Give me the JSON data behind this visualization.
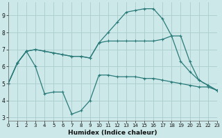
{
  "xlabel": "Humidex (Indice chaleur)",
  "bg_color": "#cce8e8",
  "grid_color": "#aacccc",
  "line_color": "#2a7a7a",
  "series": [
    {
      "x": [
        0,
        1,
        2,
        3,
        4,
        5,
        6,
        7,
        8,
        9,
        10,
        11,
        12,
        13,
        14,
        15,
        16,
        17,
        18,
        19,
        20,
        21,
        22,
        23
      ],
      "y": [
        5.0,
        6.2,
        6.9,
        6.0,
        4.4,
        4.5,
        4.5,
        3.2,
        3.4,
        4.0,
        5.5,
        5.5,
        5.4,
        5.4,
        5.4,
        5.3,
        5.3,
        5.2,
        5.1,
        5.0,
        4.9,
        4.8,
        4.8,
        4.6
      ]
    },
    {
      "x": [
        0,
        1,
        2,
        3,
        4,
        5,
        6,
        7,
        8,
        9,
        10,
        11,
        12,
        13,
        14,
        15,
        16,
        17,
        18,
        19,
        20,
        21,
        22,
        23
      ],
      "y": [
        5.0,
        6.2,
        6.9,
        7.0,
        6.9,
        6.8,
        6.7,
        6.6,
        6.6,
        6.5,
        7.4,
        7.5,
        7.5,
        7.5,
        7.5,
        7.5,
        7.5,
        7.6,
        7.8,
        6.3,
        5.7,
        5.2,
        4.9,
        4.6
      ]
    },
    {
      "x": [
        0,
        1,
        2,
        3,
        4,
        5,
        6,
        7,
        8,
        9,
        10,
        11,
        12,
        13,
        14,
        15,
        16,
        17,
        18,
        19,
        20,
        21,
        22,
        23
      ],
      "y": [
        5.0,
        6.2,
        6.9,
        7.0,
        6.9,
        6.8,
        6.7,
        6.6,
        6.6,
        6.5,
        7.4,
        8.0,
        8.6,
        9.2,
        9.3,
        9.4,
        9.4,
        8.8,
        7.8,
        7.8,
        6.3,
        5.2,
        4.9,
        4.6
      ]
    }
  ],
  "xlim": [
    0,
    23
  ],
  "ylim": [
    2.8,
    9.8
  ],
  "yticks": [
    3,
    4,
    5,
    6,
    7,
    8,
    9
  ],
  "xticks": [
    0,
    1,
    2,
    3,
    4,
    5,
    6,
    7,
    8,
    9,
    10,
    11,
    12,
    13,
    14,
    15,
    16,
    17,
    18,
    19,
    20,
    21,
    22,
    23
  ]
}
